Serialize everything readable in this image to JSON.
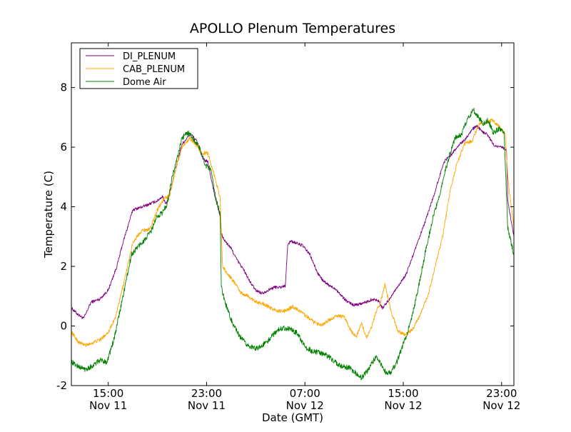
{
  "chart_data": {
    "type": "line",
    "title": "APOLLO Plenum Temperatures",
    "xlabel": "Date (GMT)",
    "ylabel": "Temperature (C)",
    "xlim": [
      12.0,
      48.0
    ],
    "ylim": [
      -2,
      9.5
    ],
    "x_unit": "hours since Nov 11 00:00 GMT",
    "grid": false,
    "legend_position": "top-left",
    "y_ticks": [
      {
        "value": -2,
        "label": "-2"
      },
      {
        "value": 0,
        "label": "0"
      },
      {
        "value": 2,
        "label": "2"
      },
      {
        "value": 4,
        "label": "4"
      },
      {
        "value": 6,
        "label": "6"
      },
      {
        "value": 8,
        "label": "8"
      }
    ],
    "x_ticks": [
      {
        "value": 15,
        "time": "15:00",
        "date": "Nov 11"
      },
      {
        "value": 23,
        "time": "23:00",
        "date": "Nov 11"
      },
      {
        "value": 31,
        "time": "07:00",
        "date": "Nov 12"
      },
      {
        "value": 39,
        "time": "15:00",
        "date": "Nov 12"
      },
      {
        "value": 47,
        "time": "23:00",
        "date": "Nov 12"
      }
    ],
    "series": [
      {
        "name": "DI_PLENUM",
        "color": "#800080",
        "noise": 0.05,
        "x": [
          12.0,
          12.5,
          13.0,
          13.6,
          14.3,
          15.0,
          15.7,
          16.2,
          17.0,
          17.8,
          18.4,
          19.0,
          19.4,
          19.7,
          20.0,
          20.5,
          21.0,
          21.7,
          22.2,
          22.7,
          23.1,
          23.7,
          24.1,
          24.2,
          24.4,
          25.0,
          25.5,
          26.0,
          26.5,
          27.0,
          27.5,
          28.0,
          28.5,
          29.0,
          29.4,
          29.6,
          29.8,
          30.2,
          30.8,
          31.4,
          32.0,
          32.5,
          33.0,
          33.5,
          34.0,
          34.5,
          35.0,
          35.5,
          36.0,
          36.5,
          37.0,
          37.3,
          37.8,
          38.5,
          39.2,
          40.0,
          40.7,
          41.5,
          42.3,
          43.0,
          43.6,
          44.1,
          44.6,
          45.0,
          45.5,
          45.9,
          46.3,
          46.7,
          47.0,
          47.4,
          47.5,
          48.0
        ],
        "y": [
          0.6,
          0.4,
          0.25,
          0.8,
          0.9,
          1.2,
          2.0,
          2.8,
          3.9,
          4.0,
          4.1,
          4.2,
          4.35,
          4.1,
          4.4,
          5.3,
          6.1,
          6.45,
          6.2,
          5.6,
          5.5,
          4.3,
          3.7,
          3.1,
          2.9,
          2.6,
          2.2,
          1.9,
          1.5,
          1.2,
          1.1,
          1.2,
          1.3,
          1.3,
          1.35,
          2.7,
          2.85,
          2.8,
          2.7,
          2.4,
          1.8,
          1.5,
          1.35,
          1.25,
          1.0,
          0.8,
          0.7,
          0.75,
          0.8,
          0.9,
          0.85,
          0.6,
          0.85,
          1.3,
          1.7,
          2.6,
          3.4,
          4.4,
          5.5,
          5.8,
          6.1,
          6.3,
          6.6,
          6.7,
          6.5,
          6.4,
          6.1,
          6.0,
          6.0,
          5.9,
          4.2,
          3.0
        ]
      },
      {
        "name": "CAB_PLENUM",
        "color": "#ffa500",
        "noise": 0.06,
        "x": [
          12.0,
          12.6,
          13.2,
          13.8,
          14.4,
          15.0,
          15.6,
          16.3,
          17.0,
          17.7,
          18.4,
          19.0,
          19.5,
          20.0,
          20.5,
          21.0,
          21.6,
          22.1,
          22.6,
          23.1,
          23.6,
          24.1,
          24.3,
          24.6,
          25.2,
          25.8,
          26.4,
          27.0,
          27.6,
          28.2,
          28.8,
          29.4,
          30.0,
          30.6,
          31.2,
          31.8,
          32.4,
          33.0,
          33.6,
          34.2,
          34.8,
          35.2,
          35.6,
          36.0,
          36.4,
          36.8,
          37.1,
          37.5,
          38.0,
          38.6,
          39.2,
          39.8,
          40.4,
          41.0,
          41.6,
          42.2,
          42.8,
          43.4,
          44.0,
          44.6,
          45.2,
          45.7,
          46.2,
          46.8,
          47.3,
          47.5,
          48.0
        ],
        "y": [
          -0.2,
          -0.55,
          -0.65,
          -0.55,
          -0.45,
          -0.2,
          0.3,
          1.5,
          2.8,
          3.2,
          3.25,
          3.9,
          4.25,
          4.4,
          5.3,
          6.0,
          6.3,
          6.1,
          5.8,
          5.8,
          5.1,
          4.3,
          2.0,
          1.8,
          1.5,
          1.1,
          1.0,
          0.8,
          0.75,
          0.6,
          0.5,
          0.5,
          0.65,
          0.5,
          0.3,
          0.1,
          0.05,
          0.2,
          0.35,
          0.3,
          -0.2,
          -0.35,
          0.1,
          -0.4,
          -0.05,
          0.5,
          0.7,
          1.4,
          0.5,
          -0.2,
          -0.3,
          -0.1,
          0.4,
          1.0,
          2.0,
          3.0,
          4.5,
          5.5,
          6.1,
          6.2,
          6.8,
          6.8,
          6.9,
          6.7,
          6.45,
          5.0,
          3.3
        ]
      },
      {
        "name": "Dome Air",
        "color": "#008000",
        "noise": 0.09,
        "x": [
          12.0,
          12.5,
          13.1,
          13.7,
          14.3,
          14.9,
          15.5,
          16.2,
          16.9,
          17.5,
          18.0,
          18.5,
          19.0,
          19.4,
          19.8,
          20.2,
          20.6,
          21.0,
          21.5,
          21.9,
          22.4,
          22.9,
          23.3,
          23.8,
          24.1,
          24.2,
          24.5,
          25.0,
          25.6,
          26.2,
          26.8,
          27.4,
          28.0,
          28.6,
          29.2,
          29.8,
          30.4,
          31.0,
          31.6,
          32.2,
          32.8,
          33.4,
          34.0,
          34.6,
          35.2,
          35.6,
          36.0,
          36.4,
          36.8,
          37.2,
          37.6,
          38.0,
          38.5,
          39.0,
          39.6,
          40.2,
          40.8,
          41.4,
          42.0,
          42.6,
          43.2,
          43.7,
          44.2,
          44.7,
          45.1,
          45.5,
          45.9,
          46.3,
          46.8,
          47.2,
          47.5,
          48.0
        ],
        "y": [
          -1.2,
          -1.35,
          -1.45,
          -1.35,
          -1.15,
          -1.2,
          -0.4,
          1.0,
          2.4,
          2.7,
          2.9,
          3.2,
          3.7,
          3.8,
          4.1,
          5.0,
          5.6,
          6.3,
          6.5,
          6.3,
          6.0,
          5.4,
          5.3,
          4.2,
          3.8,
          1.3,
          0.8,
          0.2,
          -0.3,
          -0.6,
          -0.75,
          -0.7,
          -0.5,
          -0.2,
          -0.05,
          -0.1,
          -0.25,
          -0.7,
          -0.85,
          -0.9,
          -1.0,
          -1.2,
          -1.35,
          -1.4,
          -1.6,
          -1.75,
          -1.55,
          -1.3,
          -1.0,
          -1.3,
          -1.55,
          -1.55,
          -1.2,
          -0.6,
          0.1,
          1.2,
          2.5,
          3.6,
          4.5,
          5.5,
          6.3,
          6.4,
          6.9,
          7.25,
          7.0,
          6.8,
          6.9,
          6.5,
          6.6,
          6.5,
          3.3,
          2.4
        ]
      }
    ]
  }
}
